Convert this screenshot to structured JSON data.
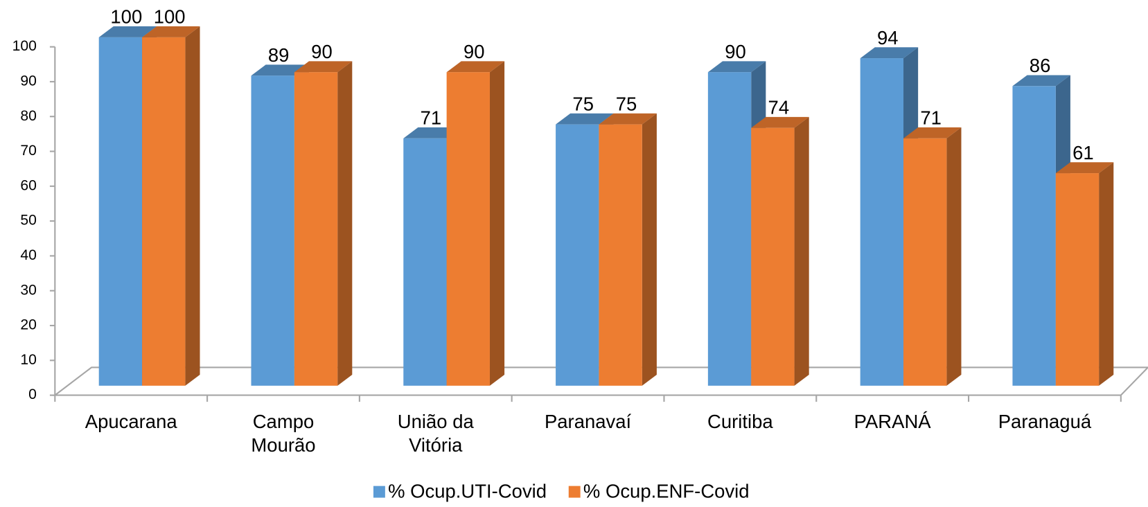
{
  "chart_data": {
    "type": "bar3d",
    "categories": [
      "Apucarana",
      "Campo Mourão",
      "União da Vitória",
      "Paranavaí",
      "Curitiba",
      "PARANÁ",
      "Paranaguá"
    ],
    "series": [
      {
        "name": "% Ocup.UTI-Covid",
        "color": "#5b9bd5",
        "values": [
          100,
          89,
          71,
          75,
          90,
          94,
          86
        ]
      },
      {
        "name": "% Ocup.ENF-Covid",
        "color": "#ed7d31",
        "values": [
          100,
          90,
          90,
          75,
          74,
          71,
          61
        ]
      }
    ],
    "ylim": [
      0,
      100
    ],
    "yticks": [
      0,
      10,
      20,
      30,
      40,
      50,
      60,
      70,
      80,
      90,
      100
    ],
    "legend": "bottom"
  }
}
